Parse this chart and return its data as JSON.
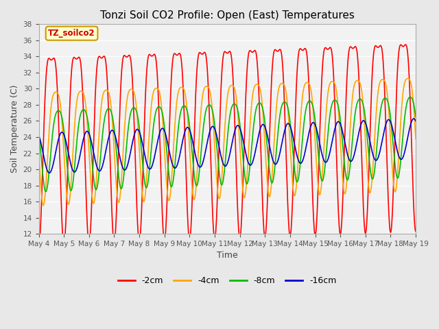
{
  "title": "Tonzi Soil CO2 Profile: Open (East) Temperatures",
  "xlabel": "Time",
  "ylabel": "Soil Temperature (C)",
  "ylim": [
    12,
    38
  ],
  "yticks": [
    12,
    14,
    16,
    18,
    20,
    22,
    24,
    26,
    28,
    30,
    32,
    34,
    36,
    38
  ],
  "x_start_day": 4,
  "x_end_day": 19,
  "xtick_days": [
    4,
    5,
    6,
    7,
    8,
    9,
    10,
    11,
    12,
    13,
    14,
    15,
    16,
    17,
    18,
    19
  ],
  "series": [
    {
      "label": "-2cm",
      "color": "#ff0000",
      "amplitude": 11.5,
      "mean": 25.5,
      "phase_shift": 0.0,
      "harmonic2": 3.5,
      "phase2": 0.0
    },
    {
      "label": "-4cm",
      "color": "#ffa500",
      "amplitude": 7.0,
      "mean": 24.0,
      "phase_shift": 0.18,
      "harmonic2": 1.5,
      "phase2": 0.18
    },
    {
      "label": "-8cm",
      "color": "#00bb00",
      "amplitude": 5.0,
      "mean": 23.0,
      "phase_shift": 0.28,
      "harmonic2": 0.8,
      "phase2": 0.28
    },
    {
      "label": "-16cm",
      "color": "#0000cc",
      "amplitude": 2.5,
      "mean": 22.0,
      "phase_shift": 0.42,
      "harmonic2": 0.0,
      "phase2": 0.0
    }
  ],
  "annotation_text": "TZ_soilco2",
  "annotation_color": "#cc0000",
  "annotation_bg": "#ffffcc",
  "annotation_border": "#cc9900",
  "bg_color": "#e8e8e8",
  "plot_bg_color": "#f2f2f2",
  "grid_color": "#ffffff",
  "line_width": 1.2
}
